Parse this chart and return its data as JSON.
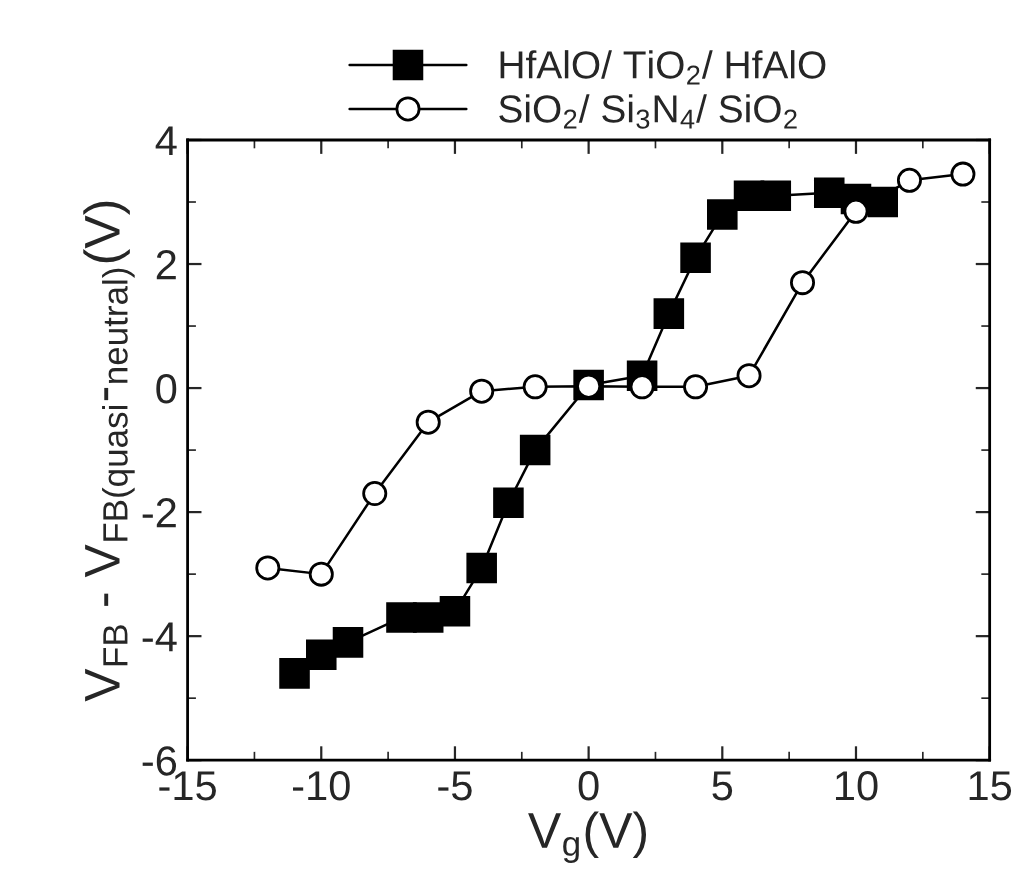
{
  "chart_data": {
    "type": "line",
    "xlabel": "V$_{g}$(V)",
    "ylabel": "V$_{FB}$ - V$_{FB(quasi}$-$_{neutral)}$(V)",
    "xlim": [
      -15,
      15
    ],
    "xticks": [
      -15,
      -10,
      -5,
      0,
      5,
      10,
      15
    ],
    "ylim": [
      -6,
      4
    ],
    "yticks": [
      -6,
      -4,
      -2,
      0,
      2,
      4
    ],
    "legend": "top",
    "grid": false,
    "series": [
      {
        "name": "HfAlO/ TiO$_{2}$/ HfAlO",
        "color": "#000000",
        "marker": "square",
        "x": [
          -11,
          -10,
          -9,
          -7,
          -6,
          -5,
          -4,
          -3,
          -2,
          0,
          2,
          3,
          4,
          5,
          6,
          7,
          9,
          10,
          11
        ],
        "values": [
          -4.6,
          -4.3,
          -4.1,
          -3.7,
          -3.7,
          -3.6,
          -2.9,
          -1.85,
          -1.0,
          0.05,
          0.2,
          1.2,
          2.1,
          2.8,
          3.1,
          3.1,
          3.15,
          3.05,
          3.0
        ]
      },
      {
        "name": "SiO$_{2}$/ Si$_{3}$N$_{4}$/ SiO$_{2}$",
        "color": "#000000",
        "marker": "circle",
        "x": [
          -12,
          -10,
          -8,
          -6,
          -4,
          -2,
          0,
          2,
          4,
          6,
          8,
          10,
          12,
          14
        ],
        "values": [
          -2.9,
          -3.0,
          -1.7,
          -0.55,
          -0.05,
          0.02,
          0.03,
          0.02,
          0.02,
          0.2,
          1.7,
          2.85,
          3.35,
          3.45
        ]
      }
    ]
  }
}
